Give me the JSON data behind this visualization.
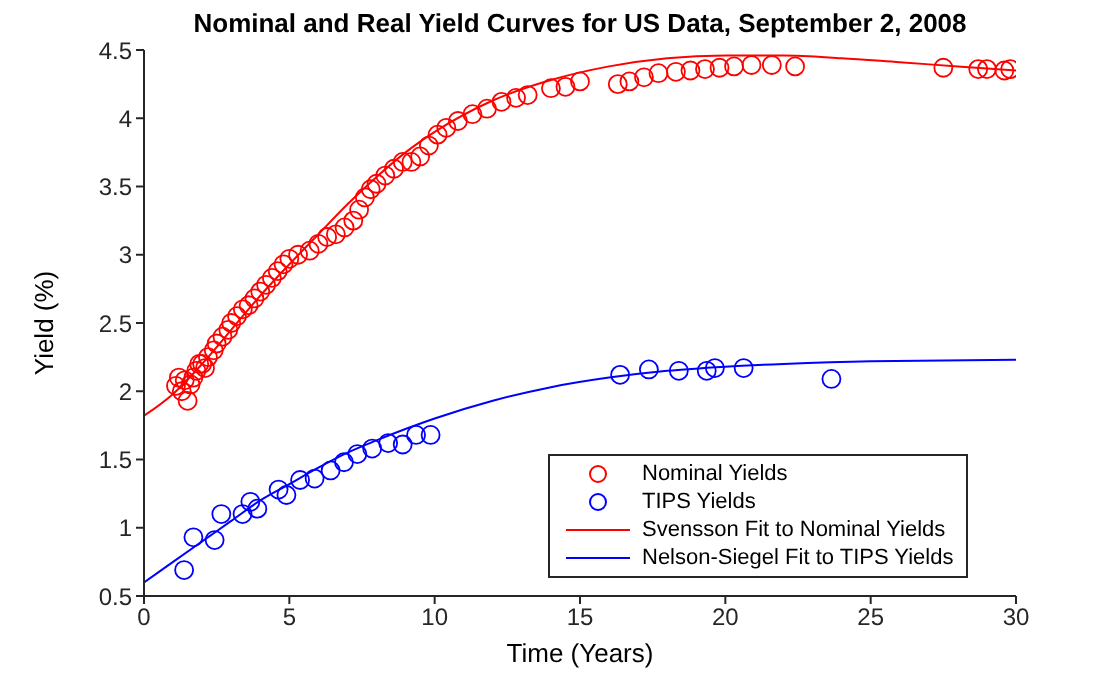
{
  "chart_data": {
    "type": "scatter",
    "title": "Nominal and Real Yield Curves for US Data, September 2, 2008",
    "xlabel": "Time (Years)",
    "ylabel": "Yield (%)",
    "xlim": [
      0,
      30
    ],
    "xticks": [
      0,
      5,
      10,
      15,
      20,
      25,
      30
    ],
    "ylim": [
      0.5,
      4.5
    ],
    "yticks": [
      0.5,
      1,
      1.5,
      2,
      2.5,
      3,
      3.5,
      4,
      4.5
    ],
    "grid": false,
    "legend": "bottom right",
    "series": [
      {
        "name": "Nominal Yields",
        "marker": "circle",
        "color": "#ff0000",
        "x": [
          1.1,
          1.2,
          1.3,
          1.4,
          1.5,
          1.6,
          1.7,
          1.8,
          1.9,
          2.0,
          2.1,
          2.2,
          2.4,
          2.5,
          2.7,
          2.9,
          3.0,
          3.2,
          3.4,
          3.6,
          3.8,
          4.0,
          4.2,
          4.4,
          4.6,
          4.8,
          5.0,
          5.3,
          5.7,
          6.0,
          6.3,
          6.6,
          6.9,
          7.2,
          7.4,
          7.6,
          7.8,
          8.0,
          8.3,
          8.6,
          8.9,
          9.2,
          9.5,
          9.8,
          10.1,
          10.4,
          10.8,
          11.3,
          11.8,
          12.3,
          12.8,
          13.2,
          14.0,
          14.5,
          15.0,
          16.3,
          16.7,
          17.2,
          17.7,
          18.3,
          18.8,
          19.3,
          19.8,
          20.3,
          20.9,
          21.6,
          22.4,
          27.5,
          28.7,
          29.0,
          29.6,
          29.8
        ],
        "values": [
          2.04,
          2.1,
          2.0,
          2.08,
          1.93,
          2.05,
          2.1,
          2.15,
          2.2,
          2.2,
          2.17,
          2.25,
          2.3,
          2.35,
          2.4,
          2.45,
          2.5,
          2.55,
          2.6,
          2.63,
          2.68,
          2.73,
          2.78,
          2.83,
          2.88,
          2.93,
          2.97,
          3.0,
          3.03,
          3.08,
          3.13,
          3.15,
          3.2,
          3.25,
          3.33,
          3.42,
          3.48,
          3.52,
          3.58,
          3.63,
          3.68,
          3.68,
          3.72,
          3.8,
          3.88,
          3.93,
          3.98,
          4.03,
          4.07,
          4.12,
          4.15,
          4.17,
          4.22,
          4.23,
          4.27,
          4.25,
          4.27,
          4.3,
          4.33,
          4.34,
          4.35,
          4.36,
          4.37,
          4.38,
          4.39,
          4.39,
          4.38,
          4.37,
          4.36,
          4.36,
          4.35,
          4.36
        ]
      },
      {
        "name": "TIPS Yields",
        "marker": "circle",
        "color": "#0000ff",
        "x": [
          1.38,
          1.7,
          2.43,
          2.66,
          3.39,
          3.66,
          3.9,
          4.63,
          4.9,
          5.37,
          5.87,
          6.42,
          6.88,
          7.34,
          7.85,
          8.4,
          8.9,
          9.36,
          9.86,
          16.38,
          17.37,
          18.4,
          19.36,
          19.64,
          20.63,
          23.65
        ],
        "values": [
          0.69,
          0.93,
          0.91,
          1.1,
          1.1,
          1.19,
          1.14,
          1.28,
          1.24,
          1.35,
          1.36,
          1.42,
          1.48,
          1.54,
          1.58,
          1.62,
          1.61,
          1.68,
          1.68,
          2.12,
          2.16,
          2.15,
          2.15,
          2.17,
          2.17,
          2.09
        ]
      },
      {
        "name": "Svensson Fit to Nominal Yields",
        "type": "line",
        "color": "#ff0000",
        "x": [
          0,
          1,
          2,
          3,
          4,
          5,
          6,
          7,
          8,
          9,
          10,
          12,
          14,
          16,
          18,
          20,
          22,
          24,
          26,
          28,
          30
        ],
        "values": [
          1.82,
          1.98,
          2.2,
          2.45,
          2.7,
          2.93,
          3.15,
          3.37,
          3.57,
          3.75,
          3.9,
          4.13,
          4.28,
          4.38,
          4.44,
          4.46,
          4.46,
          4.44,
          4.41,
          4.38,
          4.35
        ]
      },
      {
        "name": "Nelson-Siegel Fit to TIPS Yields",
        "type": "line",
        "color": "#0000ff",
        "x": [
          0,
          1,
          2,
          3,
          4,
          5,
          6,
          7,
          8,
          10,
          12,
          14,
          16,
          18,
          20,
          22,
          25,
          30
        ],
        "values": [
          0.6,
          0.75,
          0.9,
          1.05,
          1.2,
          1.32,
          1.44,
          1.55,
          1.64,
          1.8,
          1.93,
          2.03,
          2.1,
          2.15,
          2.18,
          2.2,
          2.22,
          2.23
        ]
      }
    ]
  }
}
